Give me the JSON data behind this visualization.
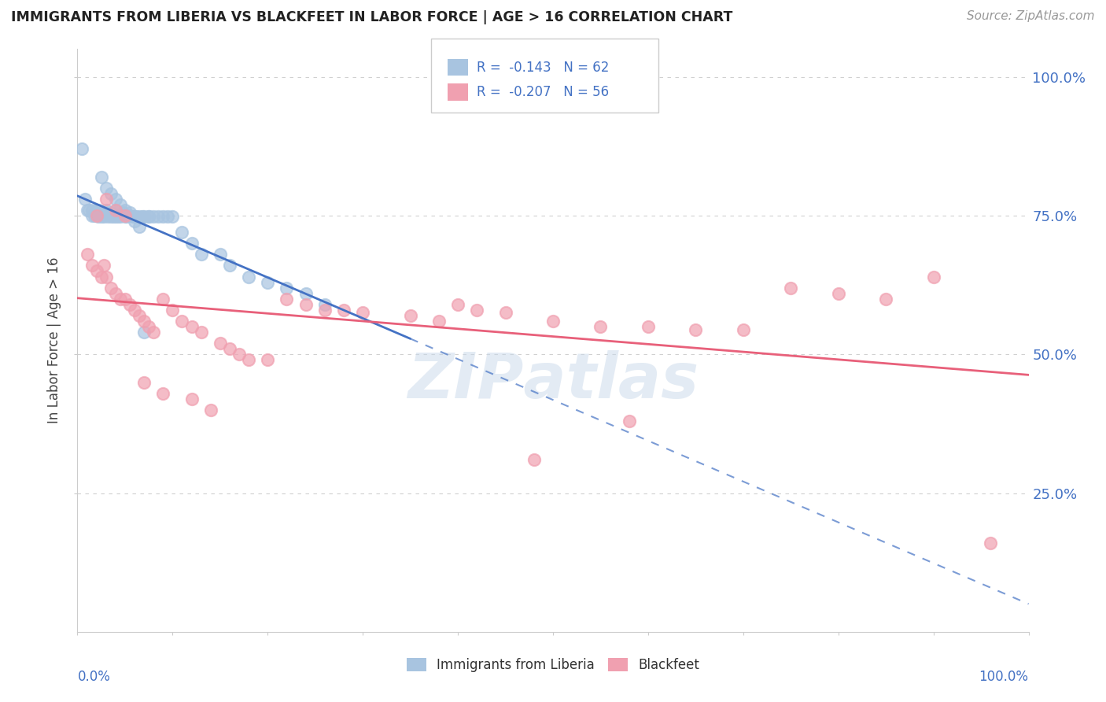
{
  "title": "IMMIGRANTS FROM LIBERIA VS BLACKFEET IN LABOR FORCE | AGE > 16 CORRELATION CHART",
  "source": "Source: ZipAtlas.com",
  "ylabel": "In Labor Force | Age > 16",
  "legend_label1": "Immigrants from Liberia",
  "legend_label2": "Blackfeet",
  "color1": "#a8c4e0",
  "color2": "#f0a0b0",
  "line_color1": "#4472c4",
  "line_color2": "#e8607a",
  "background_color": "#ffffff",
  "xlim": [
    0.0,
    1.0
  ],
  "ylim": [
    0.0,
    1.05
  ],
  "liberia_x": [
    0.005,
    0.008,
    0.01,
    0.012,
    0.015,
    0.015,
    0.018,
    0.02,
    0.02,
    0.022,
    0.022,
    0.025,
    0.025,
    0.028,
    0.028,
    0.03,
    0.03,
    0.032,
    0.035,
    0.035,
    0.038,
    0.04,
    0.04,
    0.043,
    0.045,
    0.048,
    0.05,
    0.052,
    0.055,
    0.058,
    0.06,
    0.062,
    0.065,
    0.068,
    0.07,
    0.075,
    0.075,
    0.08,
    0.085,
    0.09,
    0.095,
    0.1,
    0.11,
    0.12,
    0.13,
    0.15,
    0.16,
    0.18,
    0.2,
    0.22,
    0.24,
    0.26,
    0.03,
    0.035,
    0.04,
    0.045,
    0.05,
    0.055,
    0.06,
    0.065,
    0.025,
    0.07
  ],
  "liberia_y": [
    0.87,
    0.78,
    0.76,
    0.76,
    0.76,
    0.75,
    0.75,
    0.75,
    0.76,
    0.76,
    0.748,
    0.755,
    0.748,
    0.755,
    0.748,
    0.755,
    0.76,
    0.748,
    0.755,
    0.748,
    0.748,
    0.76,
    0.748,
    0.748,
    0.748,
    0.755,
    0.748,
    0.748,
    0.755,
    0.748,
    0.748,
    0.748,
    0.748,
    0.748,
    0.748,
    0.748,
    0.748,
    0.748,
    0.748,
    0.748,
    0.748,
    0.748,
    0.72,
    0.7,
    0.68,
    0.68,
    0.66,
    0.64,
    0.63,
    0.62,
    0.61,
    0.59,
    0.8,
    0.79,
    0.78,
    0.77,
    0.76,
    0.75,
    0.74,
    0.73,
    0.82,
    0.54
  ],
  "blackfeet_x": [
    0.01,
    0.015,
    0.02,
    0.025,
    0.028,
    0.03,
    0.035,
    0.04,
    0.045,
    0.05,
    0.055,
    0.06,
    0.065,
    0.07,
    0.075,
    0.08,
    0.09,
    0.1,
    0.11,
    0.12,
    0.13,
    0.15,
    0.16,
    0.17,
    0.18,
    0.2,
    0.22,
    0.24,
    0.26,
    0.28,
    0.3,
    0.35,
    0.38,
    0.4,
    0.42,
    0.45,
    0.5,
    0.55,
    0.6,
    0.65,
    0.7,
    0.75,
    0.8,
    0.85,
    0.9,
    0.02,
    0.03,
    0.04,
    0.05,
    0.07,
    0.09,
    0.12,
    0.14,
    0.48,
    0.96,
    0.58
  ],
  "blackfeet_y": [
    0.68,
    0.66,
    0.65,
    0.64,
    0.66,
    0.64,
    0.62,
    0.61,
    0.6,
    0.6,
    0.59,
    0.58,
    0.57,
    0.56,
    0.55,
    0.54,
    0.6,
    0.58,
    0.56,
    0.55,
    0.54,
    0.52,
    0.51,
    0.5,
    0.49,
    0.49,
    0.6,
    0.59,
    0.58,
    0.58,
    0.575,
    0.57,
    0.56,
    0.59,
    0.58,
    0.575,
    0.56,
    0.55,
    0.55,
    0.545,
    0.545,
    0.62,
    0.61,
    0.6,
    0.64,
    0.75,
    0.78,
    0.76,
    0.75,
    0.45,
    0.43,
    0.42,
    0.4,
    0.31,
    0.16,
    0.38
  ],
  "watermark_text": "ZIPatlas",
  "grid_color": "#d0d0d0"
}
